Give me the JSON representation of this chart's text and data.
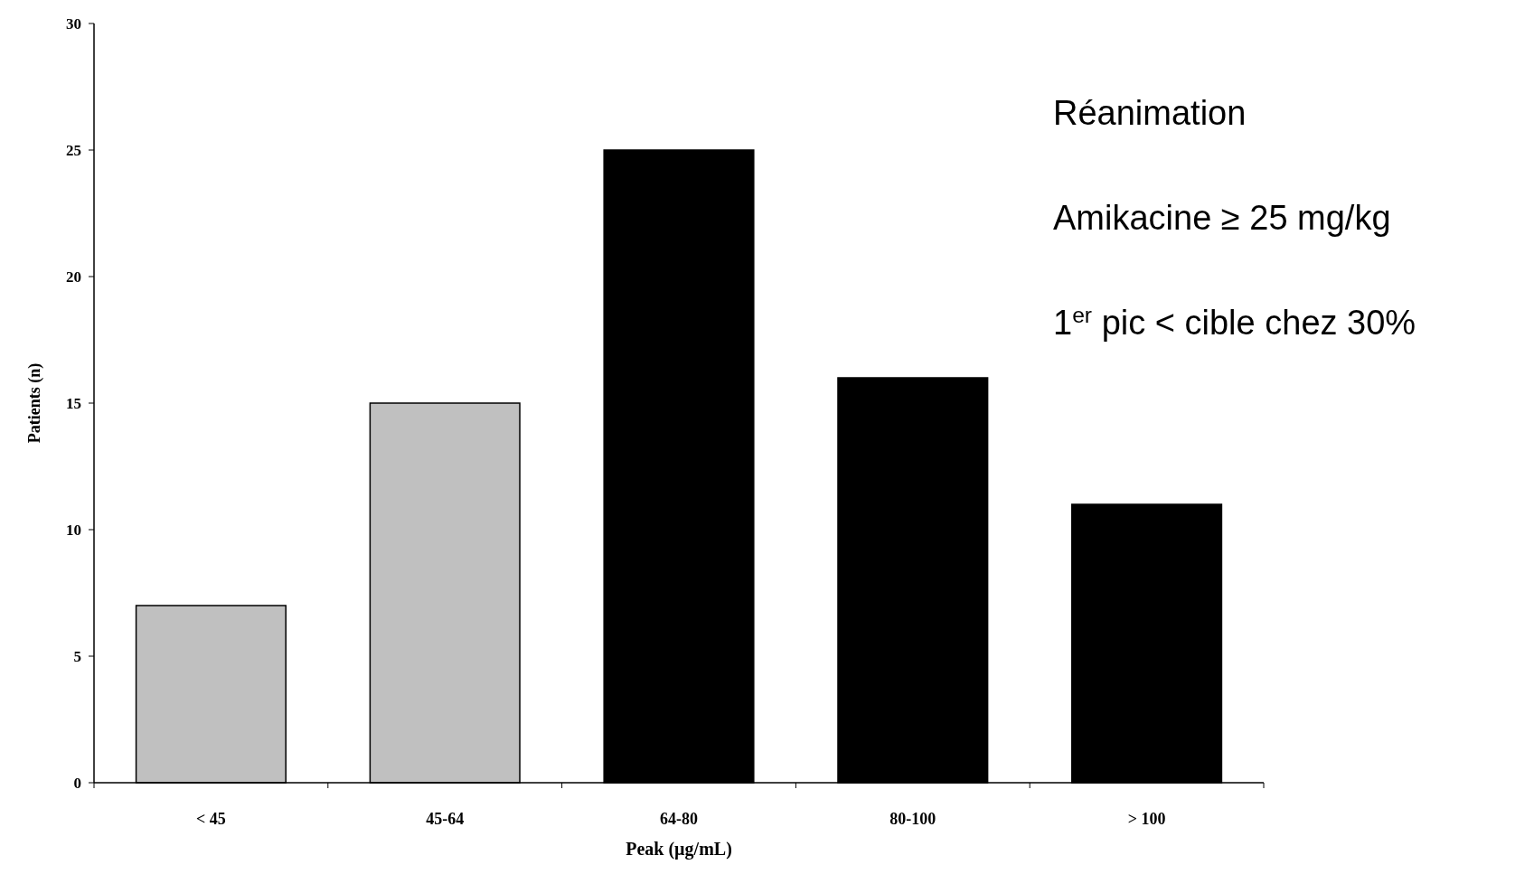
{
  "chart_data": {
    "type": "bar",
    "xlabel": "Peak (µg/mL)",
    "ylabel": "Patients (n)",
    "categories": [
      "< 45",
      "45-64",
      "64-80",
      "80-100",
      "> 100"
    ],
    "values": [
      7,
      15,
      25,
      16,
      11
    ],
    "colors": [
      "#c0c0c0",
      "#c0c0c0",
      "#000000",
      "#000000",
      "#000000"
    ],
    "ylim": [
      0,
      30
    ],
    "yticks": [
      0,
      5,
      10,
      15,
      20,
      25,
      30
    ],
    "annotations": [
      "Réanimation",
      "Amikacine ≥ 25 mg/kg",
      "1$^{er}$ pic < cible chez 30%"
    ]
  }
}
